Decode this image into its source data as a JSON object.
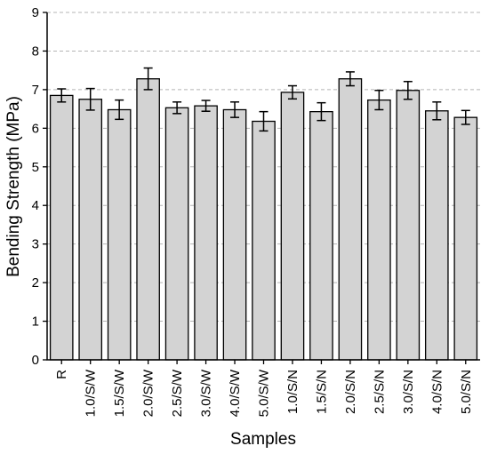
{
  "chart_data": {
    "type": "bar",
    "xlabel": "Samples",
    "ylabel": "Bending Strength (MPa)",
    "ylim": [
      0,
      9
    ],
    "yticks": [
      0,
      1,
      2,
      3,
      4,
      5,
      6,
      7,
      8,
      9
    ],
    "grid": "horizontal dashed",
    "categories": [
      "R",
      "1.0/S/W",
      "1.5/S/W",
      "2.0/S/W",
      "2.5/S/W",
      "3.0/S/W",
      "4.0/S/W",
      "5.0/S/W",
      "1.0/S/N",
      "1.5/S/N",
      "2.0/S/N",
      "2.5/S/N",
      "3.0/S/N",
      "4.0/S/N",
      "5.0/S/N"
    ],
    "values": [
      6.85,
      6.75,
      6.48,
      7.28,
      6.53,
      6.58,
      6.48,
      6.18,
      6.93,
      6.43,
      7.28,
      6.73,
      6.98,
      6.45,
      6.28
    ],
    "errors": [
      0.17,
      0.28,
      0.25,
      0.28,
      0.15,
      0.14,
      0.2,
      0.25,
      0.17,
      0.23,
      0.18,
      0.25,
      0.23,
      0.23,
      0.18
    ],
    "colors": {
      "bar_fill": "#d3d3d3",
      "bar_stroke": "#000000",
      "grid": "#b5b5b5"
    }
  }
}
